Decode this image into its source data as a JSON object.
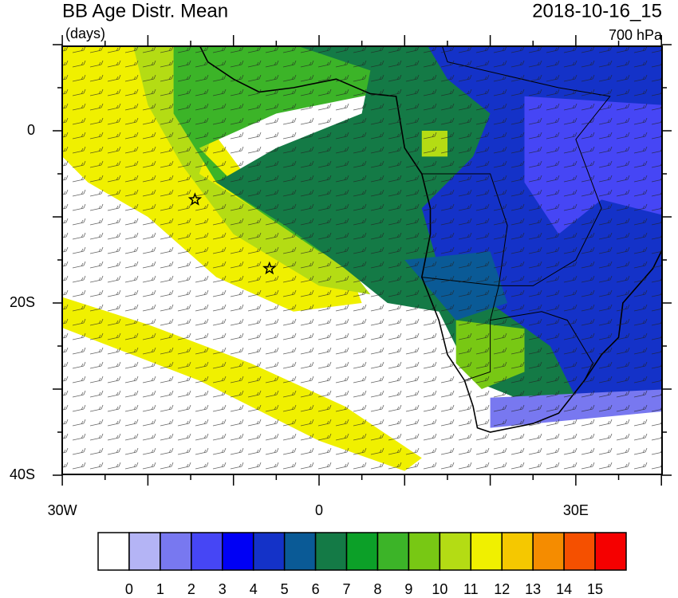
{
  "header": {
    "title": "BB Age Distr. Mean",
    "units": "(days)",
    "date": "2018-10-16_15",
    "level": "700 hPa"
  },
  "map": {
    "lat_labels": [
      "0",
      "20S",
      "40S"
    ],
    "lon_labels": [
      "30W",
      "0",
      "30E"
    ]
  },
  "colorbar": {
    "colors": [
      "#ffffff",
      "#b4b4f5",
      "#7878f0",
      "#4646f5",
      "#0000f5",
      "#1432c8",
      "#0a5a96",
      "#147a46",
      "#0ca028",
      "#3cb428",
      "#78c814",
      "#b4dc14",
      "#f0f000",
      "#f5c800",
      "#f58c00",
      "#f55000",
      "#f50000"
    ],
    "labels": [
      0,
      1,
      2,
      3,
      4,
      5,
      6,
      7,
      8,
      9,
      10,
      11,
      12,
      13,
      14,
      15
    ]
  }
}
